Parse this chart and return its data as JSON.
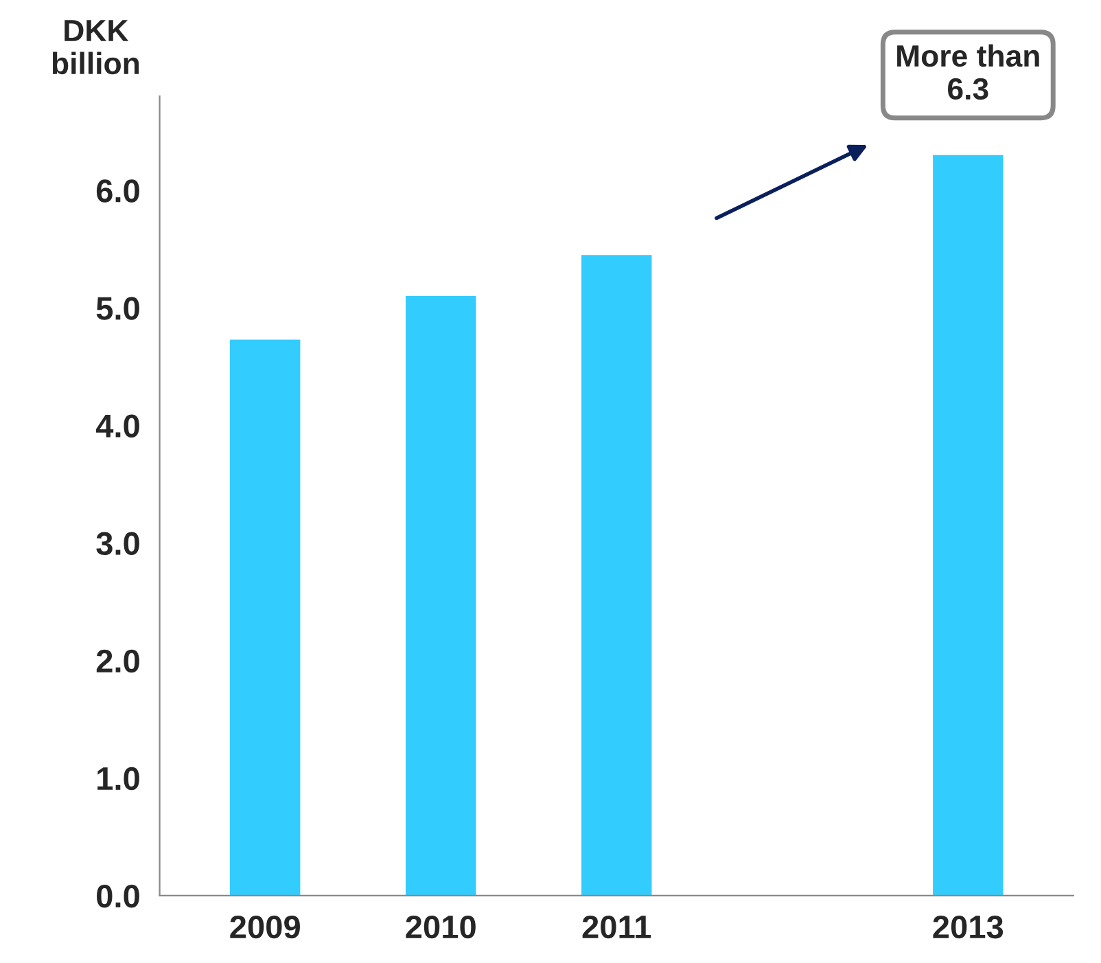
{
  "chart_data": {
    "type": "bar",
    "ylabel": "DKK\nbillion",
    "categories": [
      "2009",
      "2010",
      "2011",
      null,
      "2013"
    ],
    "values": [
      4.73,
      5.1,
      5.45,
      null,
      6.3
    ],
    "color": "#33ccff",
    "ylim": [
      0,
      6.8
    ],
    "yticks": [
      {
        "value": 0,
        "label": "0.0"
      },
      {
        "value": 1,
        "label": "1.0"
      },
      {
        "value": 2,
        "label": "2.0"
      },
      {
        "value": 3,
        "label": "3.0"
      },
      {
        "value": 4,
        "label": "4.0"
      },
      {
        "value": 5,
        "label": "5.0"
      },
      {
        "value": 6,
        "label": "6.0"
      }
    ],
    "annotations": [
      {
        "text": "More than\n6.3",
        "x": "2013",
        "y": 6.3
      }
    ],
    "grid": false,
    "legend": false
  }
}
